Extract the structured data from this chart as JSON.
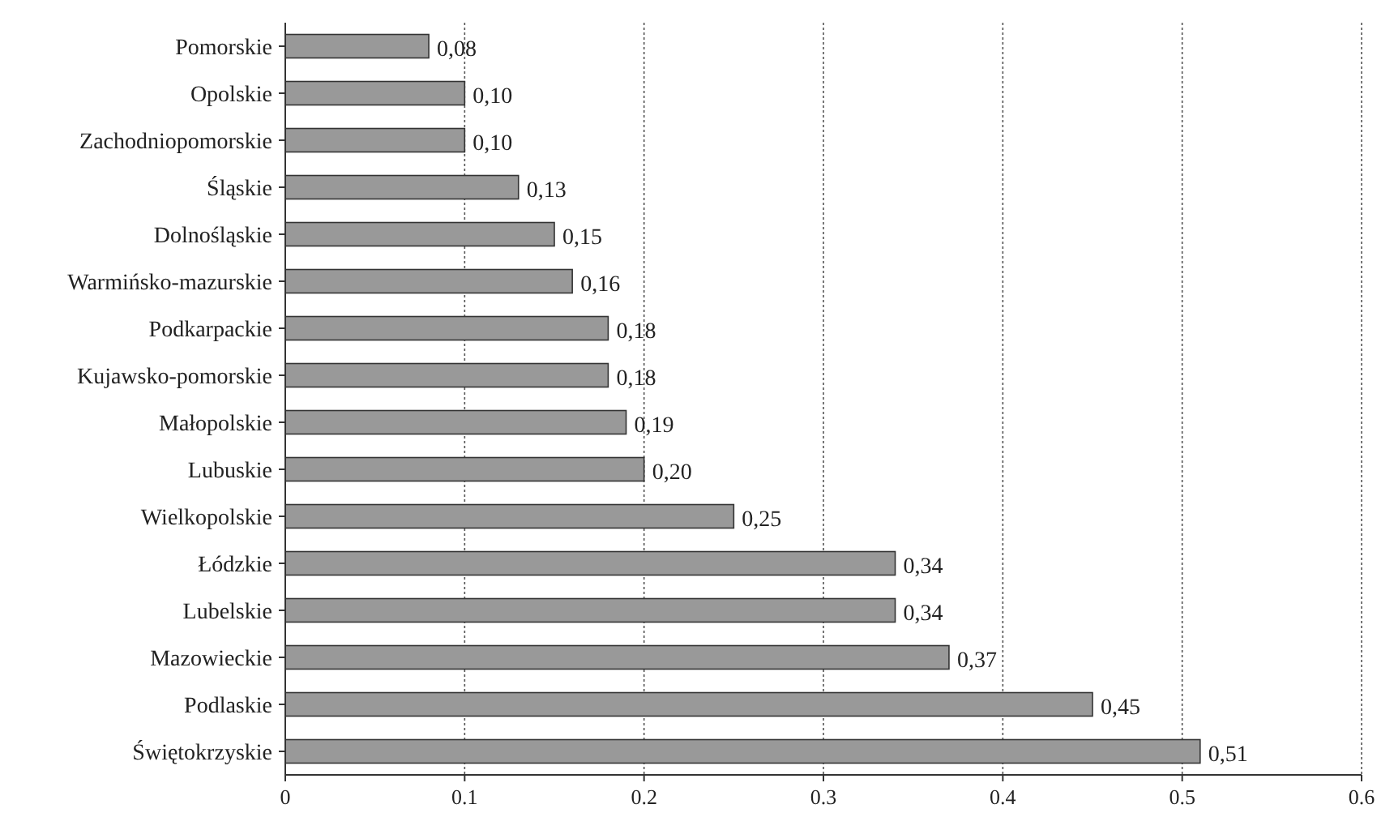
{
  "chart_data": {
    "type": "bar",
    "orientation": "horizontal",
    "categories": [
      "Pomorskie",
      "Opolskie",
      "Zachodniopomorskie",
      "Śląskie",
      "Dolnośląskie",
      "Warmińsko-mazurskie",
      "Podkarpackie",
      "Kujawsko-pomorskie",
      "Małopolskie",
      "Lubuskie",
      "Wielkopolskie",
      "Łódzkie",
      "Lubelskie",
      "Mazowieckie",
      "Podlaskie",
      "Świętokrzyskie"
    ],
    "values": [
      0.08,
      0.1,
      0.1,
      0.13,
      0.15,
      0.16,
      0.18,
      0.18,
      0.19,
      0.2,
      0.25,
      0.34,
      0.34,
      0.37,
      0.45,
      0.51
    ],
    "value_labels": [
      "0,08",
      "0,10",
      "0,10",
      "0,13",
      "0,15",
      "0,16",
      "0,18",
      "0,18",
      "0,19",
      "0,20",
      "0,25",
      "0,34",
      "0,34",
      "0,37",
      "0,45",
      "0,51"
    ],
    "color": "#999999",
    "xlim": [
      0,
      0.6
    ],
    "xticks": [
      {
        "value": 0,
        "label": "0"
      },
      {
        "value": 0.1,
        "label": "0.1"
      },
      {
        "value": 0.2,
        "label": "0.2"
      },
      {
        "value": 0.3,
        "label": "0.3"
      },
      {
        "value": 0.4,
        "label": "0.4"
      },
      {
        "value": 0.5,
        "label": "0.5"
      },
      {
        "value": 0.6,
        "label": "0.6"
      }
    ],
    "grid": "x"
  }
}
